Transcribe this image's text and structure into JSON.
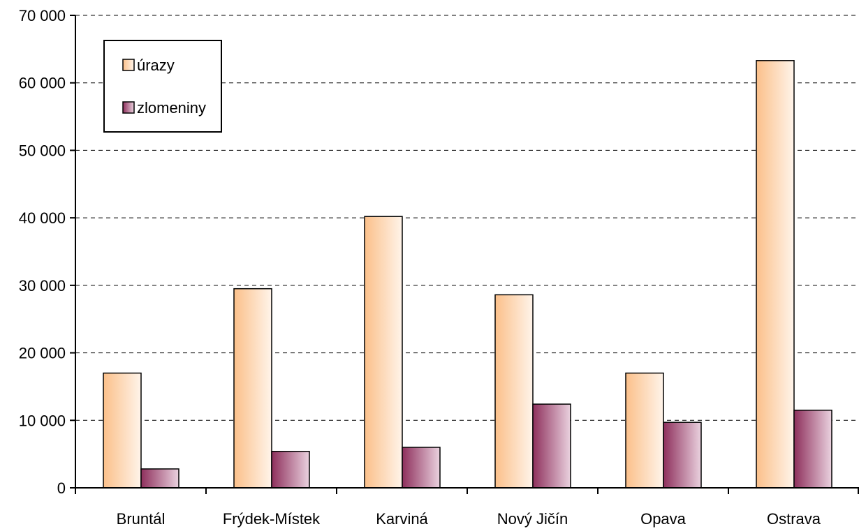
{
  "chart_data": {
    "type": "bar",
    "title": "",
    "xlabel": "",
    "ylabel": "",
    "categories": [
      "Bruntál",
      "Frýdek-Místek",
      "Karviná",
      "Nový Jičín",
      "Opava",
      "Ostrava"
    ],
    "series": [
      {
        "name": "úrazy",
        "values": [
          17000,
          29500,
          40200,
          28600,
          17000,
          63300
        ],
        "color": "#fbc89a"
      },
      {
        "name": "zlomeniny",
        "values": [
          2800,
          5400,
          6000,
          12400,
          9700,
          11500
        ],
        "color": "#9b3f6a"
      }
    ],
    "ylim": [
      0,
      70000
    ],
    "yticks": [
      0,
      10000,
      20000,
      30000,
      40000,
      50000,
      60000,
      70000
    ],
    "ytick_labels": [
      "0",
      "10 000",
      "20 000",
      "30 000",
      "40 000",
      "50 000",
      "60 000",
      "70 000"
    ],
    "grid": "horizontal dashed",
    "legend_position": "top-left"
  }
}
